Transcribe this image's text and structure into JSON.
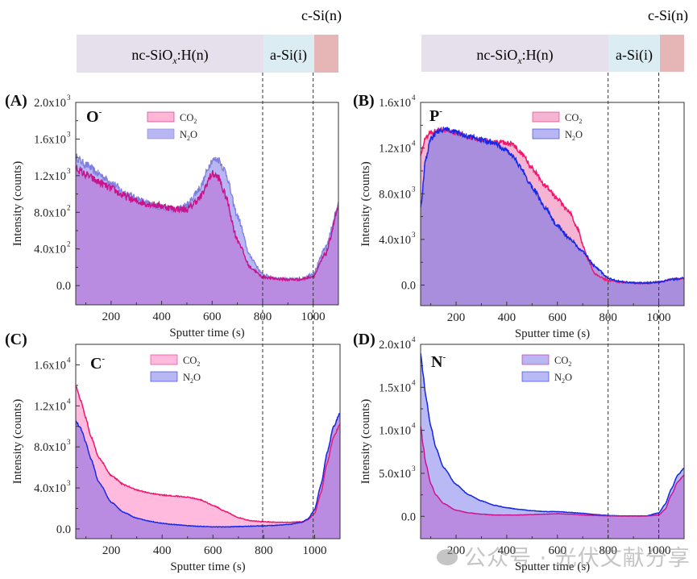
{
  "layers": {
    "nc_label_main": "nc-SiO",
    "nc_label_sub": "x",
    "nc_label_tail": ":H(n)",
    "asi_label": "a-Si(i)",
    "csi_label": "c-Si(n)",
    "colors": {
      "nc": "#e6dfec",
      "asi": "#dbedf2",
      "csi": "#e6b5b5"
    }
  },
  "watermark": "公众号 · 光伏文献分享",
  "chart_data": [
    {
      "id": "A",
      "panel_label": "(A)",
      "species": "O",
      "species_sup": "-",
      "type": "area",
      "title": "",
      "xlabel": "Sputter time (s)",
      "ylabel": "Intensity (counts)",
      "xlim": [
        60,
        1100
      ],
      "ylim": [
        -210,
        2000
      ],
      "xticks": [
        200,
        400,
        600,
        800,
        1000
      ],
      "yticks": [
        {
          "v": 0,
          "label": "0.0",
          "exp": ""
        },
        {
          "v": 400,
          "label": "4.0x10",
          "exp": "2"
        },
        {
          "v": 800,
          "label": "8.0x10",
          "exp": "2"
        },
        {
          "v": 1200,
          "label": "1.2x10",
          "exp": "3"
        },
        {
          "v": 1600,
          "label": "1.6x10",
          "exp": "3"
        },
        {
          "v": 2000,
          "label": "2.0x10",
          "exp": "3"
        }
      ],
      "legend_placement": "top-center",
      "vlines": [
        800,
        1000
      ],
      "noise": 30,
      "series": [
        {
          "name": "N2O",
          "label_main": "N",
          "label_sub": "2",
          "label_tail": "O",
          "line": "#7f7fe0",
          "fill": "#b9b6f4",
          "x": [
            60,
            100,
            150,
            200,
            250,
            300,
            350,
            400,
            450,
            500,
            550,
            600,
            625,
            650,
            700,
            750,
            800,
            850,
            900,
            950,
            1000,
            1050,
            1100
          ],
          "y": [
            1400,
            1320,
            1220,
            1130,
            1020,
            950,
            890,
            850,
            820,
            880,
            1060,
            1370,
            1380,
            1260,
            760,
            320,
            120,
            80,
            70,
            72,
            130,
            420,
            880
          ]
        },
        {
          "name": "CO2",
          "label_main": "CO",
          "label_sub": "2",
          "label_tail": "",
          "line": "#c8148c",
          "fill": "#ffb6d5",
          "x": [
            60,
            100,
            150,
            200,
            250,
            300,
            350,
            400,
            450,
            500,
            550,
            600,
            625,
            650,
            700,
            750,
            800,
            850,
            900,
            950,
            1000,
            1050,
            1100
          ],
          "y": [
            1280,
            1210,
            1130,
            1060,
            980,
            920,
            890,
            870,
            840,
            830,
            950,
            1220,
            1180,
            1000,
            500,
            200,
            95,
            75,
            65,
            68,
            100,
            350,
            850
          ]
        }
      ]
    },
    {
      "id": "B",
      "panel_label": "(B)",
      "species": "P",
      "species_sup": "-",
      "type": "area",
      "title": "",
      "xlabel": "Sputter time (s)",
      "ylabel": "Intensity (counts)",
      "xlim": [
        60,
        1100
      ],
      "ylim": [
        -1800,
        16000
      ],
      "xticks": [
        200,
        400,
        600,
        800,
        1000
      ],
      "yticks": [
        {
          "v": 0,
          "label": "0.0",
          "exp": ""
        },
        {
          "v": 4000,
          "label": "4.0x10",
          "exp": "3"
        },
        {
          "v": 8000,
          "label": "8.0x10",
          "exp": "3"
        },
        {
          "v": 12000,
          "label": "1.2x10",
          "exp": "4"
        },
        {
          "v": 16000,
          "label": "1.6x10",
          "exp": "4"
        }
      ],
      "legend_placement": "top-right",
      "vlines": [
        800,
        1000
      ],
      "noise": 160,
      "series": [
        {
          "name": "CO2",
          "label_main": "CO",
          "label_sub": "2",
          "label_tail": "",
          "line": "#f0186e",
          "fill": "#f4b4d2",
          "x": [
            60,
            80,
            100,
            130,
            160,
            200,
            250,
            300,
            350,
            400,
            430,
            460,
            500,
            550,
            600,
            650,
            680,
            700,
            720,
            750,
            800,
            850,
            900,
            950,
            1000,
            1050,
            1100
          ],
          "y": [
            11500,
            12900,
            13400,
            13600,
            13550,
            13300,
            13000,
            12700,
            12500,
            12500,
            12200,
            11500,
            10200,
            8800,
            7500,
            6300,
            5000,
            3500,
            2200,
            900,
            400,
            250,
            200,
            180,
            250,
            500,
            600
          ]
        },
        {
          "name": "N2O",
          "label_main": "N",
          "label_sub": "2",
          "label_tail": "O",
          "line": "#1428e6",
          "fill": "#aa92de",
          "x": [
            60,
            80,
            100,
            130,
            160,
            200,
            250,
            300,
            350,
            400,
            430,
            460,
            500,
            550,
            600,
            650,
            700,
            750,
            800,
            850,
            900,
            950,
            1000,
            1050,
            1100
          ],
          "y": [
            6800,
            11000,
            12800,
            13500,
            13700,
            13400,
            13000,
            12700,
            12400,
            11800,
            11100,
            10100,
            8600,
            6800,
            5200,
            4000,
            2900,
            1600,
            600,
            300,
            200,
            180,
            250,
            500,
            600
          ]
        }
      ]
    },
    {
      "id": "C",
      "panel_label": "(C)",
      "species": "C",
      "species_sup": "-",
      "type": "area",
      "title": "",
      "xlabel": "Sputter time (s)",
      "ylabel": "Intensity (counts)",
      "xlim": [
        60,
        1100
      ],
      "ylim": [
        -950,
        18000
      ],
      "xticks": [
        200,
        400,
        600,
        800,
        1000
      ],
      "yticks": [
        {
          "v": 0,
          "label": "0.0",
          "exp": ""
        },
        {
          "v": 4000,
          "label": "4.0x10",
          "exp": "3"
        },
        {
          "v": 8000,
          "label": "8.0x10",
          "exp": "3"
        },
        {
          "v": 12000,
          "label": "1.2x10",
          "exp": "4"
        },
        {
          "v": 16000,
          "label": "1.6x10",
          "exp": "4"
        }
      ],
      "legend_placement": "top-center",
      "vlines": [
        800,
        1000
      ],
      "noise": 60,
      "series": [
        {
          "name": "CO2",
          "label_main": "CO",
          "label_sub": "2",
          "label_tail": "",
          "line": "#f0186e",
          "fill": "#ffbade",
          "x": [
            60,
            80,
            100,
            120,
            150,
            200,
            250,
            300,
            350,
            400,
            450,
            500,
            550,
            600,
            650,
            700,
            750,
            800,
            850,
            900,
            950,
            975,
            1000,
            1025,
            1050,
            1075,
            1100
          ],
          "y": [
            14000,
            12500,
            10800,
            9000,
            7000,
            5200,
            4300,
            3800,
            3500,
            3300,
            3200,
            3100,
            2850,
            2300,
            1700,
            1100,
            800,
            700,
            650,
            650,
            700,
            900,
            1500,
            3500,
            6500,
            9000,
            10200
          ]
        },
        {
          "name": "N2O",
          "label_main": "N",
          "label_sub": "2",
          "label_tail": "O",
          "line": "#1428e6",
          "fill": "#b98ce2",
          "x": [
            60,
            80,
            100,
            120,
            150,
            200,
            250,
            300,
            350,
            400,
            450,
            500,
            550,
            600,
            650,
            700,
            750,
            800,
            850,
            900,
            950,
            975,
            1000,
            1025,
            1050,
            1075,
            1100
          ],
          "y": [
            10500,
            9800,
            8400,
            6800,
            4600,
            2600,
            1600,
            1050,
            750,
            550,
            420,
            320,
            250,
            200,
            200,
            230,
            270,
            300,
            350,
            450,
            650,
            1000,
            1900,
            4300,
            7500,
            10000,
            11300
          ]
        }
      ]
    },
    {
      "id": "D",
      "panel_label": "(D)",
      "species": "N",
      "species_sup": "-",
      "type": "area",
      "title": "",
      "xlabel": "Sputter time (s)",
      "ylabel": "Intensity (counts)",
      "xlim": [
        60,
        1100
      ],
      "ylim": [
        -2600,
        20000
      ],
      "xticks": [
        200,
        400,
        600,
        800,
        1000
      ],
      "yticks": [
        {
          "v": 0,
          "label": "0.0",
          "exp": ""
        },
        {
          "v": 5000,
          "label": "5.0x10",
          "exp": "3"
        },
        {
          "v": 10000,
          "label": "1.0x10",
          "exp": "4"
        },
        {
          "v": 15000,
          "label": "1.5x10",
          "exp": "4"
        },
        {
          "v": 20000,
          "label": "2.0x10",
          "exp": "4"
        }
      ],
      "legend_placement": "top-center",
      "vlines": [
        800,
        1000
      ],
      "noise": 40,
      "series": [
        {
          "name": "N2O",
          "label_main": "N",
          "label_sub": "2",
          "label_tail": "O",
          "line": "#1428e6",
          "fill": "#b9b9f6",
          "x": [
            60,
            70,
            80,
            100,
            120,
            150,
            200,
            250,
            300,
            350,
            400,
            450,
            500,
            550,
            600,
            650,
            700,
            750,
            800,
            850,
            900,
            950,
            1000,
            1025,
            1050,
            1075,
            1100
          ],
          "y": [
            19000,
            16500,
            14000,
            10500,
            8000,
            5700,
            3700,
            2500,
            1800,
            1300,
            1000,
            800,
            650,
            550,
            550,
            450,
            350,
            200,
            100,
            50,
            50,
            50,
            400,
            1400,
            3200,
            4800,
            5600
          ]
        },
        {
          "name": "CO2",
          "label_main": "CO",
          "label_sub": "2",
          "label_tail": "",
          "line": "#c8148c",
          "fill": "#b98ce2",
          "x": [
            60,
            70,
            80,
            100,
            120,
            150,
            200,
            250,
            300,
            350,
            400,
            450,
            500,
            550,
            600,
            650,
            700,
            750,
            800,
            850,
            900,
            950,
            1000,
            1025,
            1050,
            1075,
            1100
          ],
          "y": [
            10500,
            8200,
            6200,
            3800,
            2500,
            1500,
            700,
            400,
            250,
            150,
            150,
            150,
            200,
            250,
            300,
            250,
            150,
            100,
            50,
            30,
            30,
            30,
            150,
            800,
            2500,
            4000,
            4800
          ]
        }
      ]
    }
  ]
}
